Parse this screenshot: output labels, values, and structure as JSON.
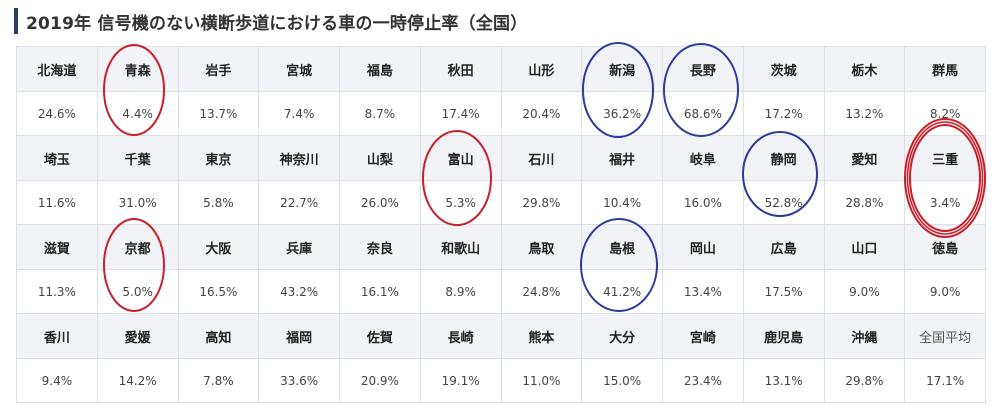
{
  "title": "2019年 信号機のない横断歩道における車の一時停止率（全国）",
  "rows": [
    {
      "prefectures": [
        "北海道",
        "青森",
        "岩手",
        "宮城",
        "福島",
        "秋田",
        "山形",
        "新潟",
        "長野",
        "茨城",
        "栃木",
        "群馬"
      ],
      "rates": [
        "24.6%",
        "4.4%",
        "13.7%",
        "7.4%",
        "8.7%",
        "17.4%",
        "20.4%",
        "36.2%",
        "68.6%",
        "17.2%",
        "13.2%",
        "8.2%"
      ]
    },
    {
      "prefectures": [
        "埼玉",
        "千葉",
        "東京",
        "神奈川",
        "山梨",
        "富山",
        "石川",
        "福井",
        "岐阜",
        "静岡",
        "愛知",
        "三重"
      ],
      "rates": [
        "11.6%",
        "31.0%",
        "5.8%",
        "22.7%",
        "26.0%",
        "5.3%",
        "29.8%",
        "10.4%",
        "16.0%",
        "52.8%",
        "28.8%",
        "3.4%"
      ]
    },
    {
      "prefectures": [
        "滋賀",
        "京都",
        "大阪",
        "兵庫",
        "奈良",
        "和歌山",
        "鳥取",
        "島根",
        "岡山",
        "広島",
        "山口",
        "徳島"
      ],
      "rates": [
        "11.3%",
        "5.0%",
        "16.5%",
        "43.2%",
        "16.1%",
        "8.9%",
        "24.8%",
        "41.2%",
        "13.4%",
        "17.5%",
        "9.0%",
        "9.0%"
      ]
    },
    {
      "prefectures": [
        "香川",
        "愛媛",
        "高知",
        "福岡",
        "佐賀",
        "長崎",
        "熊本",
        "大分",
        "宮崎",
        "鹿児島",
        "沖縄",
        "全国平均"
      ],
      "rates": [
        "9.4%",
        "14.2%",
        "7.8%",
        "33.6%",
        "20.9%",
        "19.1%",
        "11.0%",
        "15.0%",
        "23.4%",
        "13.1%",
        "29.8%",
        "17.1%"
      ]
    }
  ],
  "highlights": {
    "low_color": "#c8202a",
    "high_color": "#2e3a9c",
    "low_circled": [
      "青森",
      "富山",
      "京都",
      "三重"
    ],
    "high_circled": [
      "新潟",
      "長野",
      "静岡",
      "島根"
    ]
  }
}
